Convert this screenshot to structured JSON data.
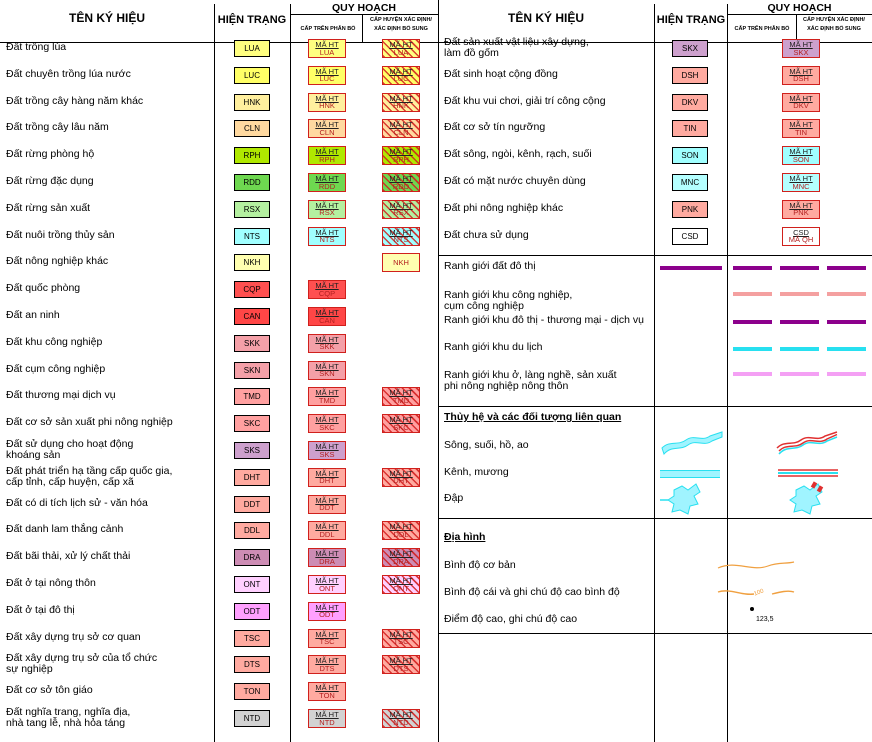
{
  "headers": {
    "name": "TÊN KÝ HIỆU",
    "current": "HIỆN TRẠNG",
    "plan": "QUY HOẠCH",
    "plan_upper": "CẤP TRÊN PHÂN BỔ",
    "plan_district_line1": "CẤP HUYỆN XÁC ĐỊNH/",
    "plan_district_line2": "XÁC ĐỊNH BỔ SUNG"
  },
  "plan_label": "MÃ HT",
  "left_rows": [
    {
      "label1": "Đất trồng lúa",
      "label2": "",
      "code": "LUA",
      "color": "#ffff80",
      "upper": true,
      "district": true
    },
    {
      "label1": "Đất chuyên trồng lúa nước",
      "label2": "",
      "code": "LUC",
      "color": "#ffff66",
      "upper": true,
      "district": true
    },
    {
      "label1": "Đất trồng cây hàng năm khác",
      "label2": "",
      "code": "HNK",
      "color": "#ffef9e",
      "upper": true,
      "district": true
    },
    {
      "label1": "Đất trồng cây lâu năm",
      "label2": "",
      "code": "CLN",
      "color": "#ffd9a0",
      "upper": true,
      "district": true
    },
    {
      "label1": "Đất rừng phòng hộ",
      "label2": "",
      "code": "RPH",
      "color": "#b0e800",
      "upper": true,
      "district": true
    },
    {
      "label1": "Đất rừng đặc dụng",
      "label2": "",
      "code": "RDD",
      "color": "#6ed850",
      "upper": true,
      "district": true
    },
    {
      "label1": "Đất rừng sản xuất",
      "label2": "",
      "code": "RSX",
      "color": "#b4f0a0",
      "upper": true,
      "district": true
    },
    {
      "label1": "Đất nuôi trồng thủy sản",
      "label2": "",
      "code": "NTS",
      "color": "#a0ffff",
      "upper": true,
      "district": true
    },
    {
      "label1": "Đất nông nghiệp khác",
      "label2": "",
      "code": "NKH",
      "color": "#ffffb0",
      "upper": false,
      "district": "plain"
    },
    {
      "label1": "Đất quốc phòng",
      "label2": "",
      "code": "CQP",
      "color": "#ff5050",
      "upper": "solid",
      "district": false
    },
    {
      "label1": "Đất an ninh",
      "label2": "",
      "code": "CAN",
      "color": "#ff4646",
      "upper": "solid",
      "district": false
    },
    {
      "label1": "Đất khu công nghiệp",
      "label2": "",
      "code": "SKK",
      "color": "#f4a0a8",
      "upper": true,
      "district": false
    },
    {
      "label1": "Đất cụm công nghiệp",
      "label2": "",
      "code": "SKN",
      "color": "#f4a0a8",
      "upper": true,
      "district": false
    },
    {
      "label1": "Đất thương mại dịch vụ",
      "label2": "",
      "code": "TMD",
      "color": "#ffa0a0",
      "upper": true,
      "district": true
    },
    {
      "label1": "Đất cơ sở sản xuất phi nông nghiệp",
      "label2": "",
      "code": "SKC",
      "color": "#ffa0a0",
      "upper": true,
      "district": true
    },
    {
      "label1": "Đất sử dụng cho hoạt động",
      "label2": "khoáng sản",
      "code": "SKS",
      "color": "#cda0cd",
      "upper": true,
      "district": false
    },
    {
      "label1": "Đất phát triển hạ tầng cấp quốc gia,",
      "label2": "cấp tỉnh, cấp huyện, cấp xã",
      "code": "DHT",
      "color": "#ffaaa0",
      "upper": true,
      "district": true
    },
    {
      "label1": "Đất có di tích lịch sử - văn hóa",
      "label2": "",
      "code": "DDT",
      "color": "#ffaaa0",
      "upper": true,
      "district": false
    },
    {
      "label1": "Đất danh lam thắng cảnh",
      "label2": "",
      "code": "DDL",
      "color": "#ffaaa0",
      "upper": true,
      "district": true
    },
    {
      "label1": "Đất bãi thải, xử lý chất thải",
      "label2": "",
      "code": "DRA",
      "color": "#cd8cb4",
      "upper": true,
      "district": true
    },
    {
      "label1": "Đất ở tại nông thôn",
      "label2": "",
      "code": "ONT",
      "color": "#ffd0ff",
      "upper": true,
      "district": true
    },
    {
      "label1": "Đất ở tại đô thị",
      "label2": "",
      "code": "ODT",
      "color": "#ffa0ff",
      "upper": true,
      "district": false
    },
    {
      "label1": "Đất xây dựng trụ sở cơ quan",
      "label2": "",
      "code": "TSC",
      "color": "#ffaaa0",
      "upper": true,
      "district": true
    },
    {
      "label1": "Đất xây dựng trụ sở của tổ chức",
      "label2": "sự nghiệp",
      "code": "DTS",
      "color": "#ffaaa0",
      "upper": true,
      "district": true
    },
    {
      "label1": "Đất cơ sở tôn giáo",
      "label2": "",
      "code": "TON",
      "color": "#ffaaa0",
      "upper": true,
      "district": false
    },
    {
      "label1": "Đất nghĩa trang, nghĩa địa,",
      "label2": "nhà tang lễ, nhà hỏa táng",
      "code": "NTD",
      "color": "#d2d2d2",
      "upper": true,
      "district": true
    }
  ],
  "right_rows": [
    {
      "label1": "Đất sản xuất vật liệu xây dựng,",
      "label2": "làm đồ gốm",
      "code": "SKX",
      "color": "#cda0cd",
      "upper": false,
      "district": true
    },
    {
      "label1": "Đất sinh hoạt cộng đồng",
      "label2": "",
      "code": "DSH",
      "color": "#ffaaa0",
      "upper": false,
      "district": true
    },
    {
      "label1": "Đất khu vui chơi, giải trí công cộng",
      "label2": "",
      "code": "DKV",
      "color": "#ffaaa0",
      "upper": false,
      "district": true
    },
    {
      "label1": "Đất cơ sở tín ngưỡng",
      "label2": "",
      "code": "TIN",
      "color": "#ffaaa0",
      "upper": false,
      "district": true
    },
    {
      "label1": "Đất sông, ngòi, kênh, rạch, suối",
      "label2": "",
      "code": "SON",
      "color": "#a0ffff",
      "upper": false,
      "district": true
    },
    {
      "label1": "Đất có mặt nước chuyên dùng",
      "label2": "",
      "code": "MNC",
      "color": "#b4ffff",
      "upper": false,
      "district": true
    },
    {
      "label1": "Đất phi nông nghiệp khác",
      "label2": "",
      "code": "PNK",
      "color": "#ffaaa0",
      "upper": false,
      "district": true
    },
    {
      "label1": "Đất chưa sử dụng",
      "label2": "",
      "code": "CSD",
      "color": "#ffffff",
      "upper": false,
      "district": "csd"
    }
  ],
  "csd_plan": {
    "top": "CSD",
    "bottom": "MÃ QH"
  },
  "boundaries": [
    {
      "label1": "Ranh giới đất đô thị",
      "label2": "",
      "color": "#8c008c",
      "current": true
    },
    {
      "label1": "Ranh giới khu công nghiệp,",
      "label2": "cụm công nghiệp",
      "color": "#f4a0a0",
      "current": false
    },
    {
      "label1": "Ranh giới khu đô thị - thương mại - dịch vụ",
      "label2": "",
      "color": "#8c008c",
      "current": false
    },
    {
      "label1": "Ranh giới khu du lịch",
      "label2": "",
      "color": "#28e0f0",
      "current": false
    },
    {
      "label1": "Ranh giới khu ở, làng nghề, sản xuất",
      "label2": "phi nông nghiệp nông thôn",
      "color": "#f4a0f4",
      "current": false
    }
  ],
  "hydro": {
    "title": "Thủy hệ và các đối tượng liên quan",
    "items": [
      "Sông, suối, hồ, ao",
      "Kênh, mương",
      "Đập"
    ]
  },
  "terrain": {
    "title": "Địa hình",
    "items": [
      "Bình độ cơ bản",
      "Bình độ cái và ghi chú độ cao bình độ",
      "Điểm độ cao, ghi chú độ cao"
    ],
    "contour_label": "100",
    "elev_label": "123,5"
  },
  "colors": {
    "river": "#28e0f0",
    "red": "#e03030",
    "contour": "#f0a040"
  }
}
